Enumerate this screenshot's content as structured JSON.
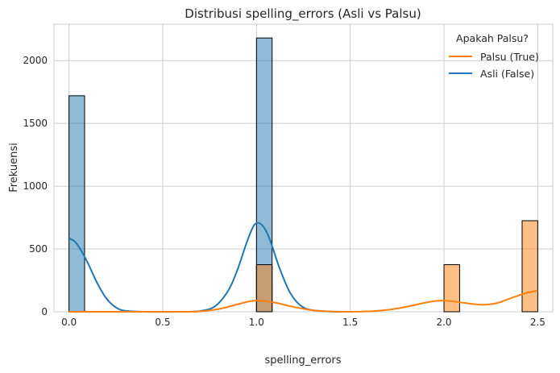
{
  "chart_data": {
    "type": "bar",
    "title": "Distribusi spelling_errors (Asli vs Palsu)",
    "xlabel": "spelling_errors",
    "ylabel": "Frekuensi",
    "xlim": [
      -0.08,
      2.58
    ],
    "ylim": [
      0,
      2290
    ],
    "x_ticks": [
      "0.0",
      "0.5",
      "1.0",
      "1.5",
      "2.0",
      "2.5"
    ],
    "y_ticks": [
      "0",
      "500",
      "1000",
      "1500",
      "2000"
    ],
    "grid": true,
    "legend": {
      "title": "Apakah Palsu?",
      "placement": "top-right",
      "entries": [
        "Palsu (True)",
        "Asli (False)"
      ]
    },
    "colors": {
      "palsu": "#ff7f0e",
      "asli": "#1f77b4",
      "bar_edge": "#000000",
      "grid": "#cccccc",
      "axes_edge": "#cccccc"
    },
    "bin_width": 0.0833,
    "series": [
      {
        "name": "Asli (False)",
        "bins": [
          {
            "x": 0.0,
            "value": 1720
          },
          {
            "x": 1.0,
            "value": 2180
          }
        ]
      },
      {
        "name": "Palsu (True)",
        "bins": [
          {
            "x": 1.0,
            "value": 375
          },
          {
            "x": 2.0,
            "value": 375
          },
          {
            "x": 2.4167,
            "value": 725
          }
        ]
      }
    ],
    "kde": [
      {
        "name": "Asli (False)",
        "points": [
          [
            0,
            585
          ],
          [
            0.03,
            560
          ],
          [
            0.06,
            500
          ],
          [
            0.1,
            390
          ],
          [
            0.15,
            230
          ],
          [
            0.2,
            105
          ],
          [
            0.25,
            35
          ],
          [
            0.3,
            8
          ],
          [
            0.4,
            0
          ],
          [
            0.6,
            0
          ],
          [
            0.7,
            6
          ],
          [
            0.78,
            45
          ],
          [
            0.85,
            170
          ],
          [
            0.9,
            340
          ],
          [
            0.95,
            560
          ],
          [
            0.99,
            695
          ],
          [
            1.03,
            690
          ],
          [
            1.07,
            580
          ],
          [
            1.12,
            360
          ],
          [
            1.18,
            150
          ],
          [
            1.25,
            35
          ],
          [
            1.35,
            5
          ],
          [
            1.5,
            0
          ]
        ]
      },
      {
        "name": "Palsu (True)",
        "points": [
          [
            0,
            0
          ],
          [
            0.6,
            0
          ],
          [
            0.7,
            4
          ],
          [
            0.8,
            22
          ],
          [
            0.9,
            60
          ],
          [
            0.97,
            85
          ],
          [
            1.02,
            88
          ],
          [
            1.1,
            72
          ],
          [
            1.2,
            38
          ],
          [
            1.3,
            12
          ],
          [
            1.4,
            2
          ],
          [
            1.5,
            0
          ],
          [
            1.6,
            3
          ],
          [
            1.7,
            15
          ],
          [
            1.8,
            40
          ],
          [
            1.9,
            72
          ],
          [
            1.97,
            88
          ],
          [
            2.03,
            86
          ],
          [
            2.1,
            72
          ],
          [
            2.2,
            56
          ],
          [
            2.28,
            68
          ],
          [
            2.36,
            110
          ],
          [
            2.44,
            150
          ],
          [
            2.5,
            168
          ]
        ]
      }
    ]
  }
}
